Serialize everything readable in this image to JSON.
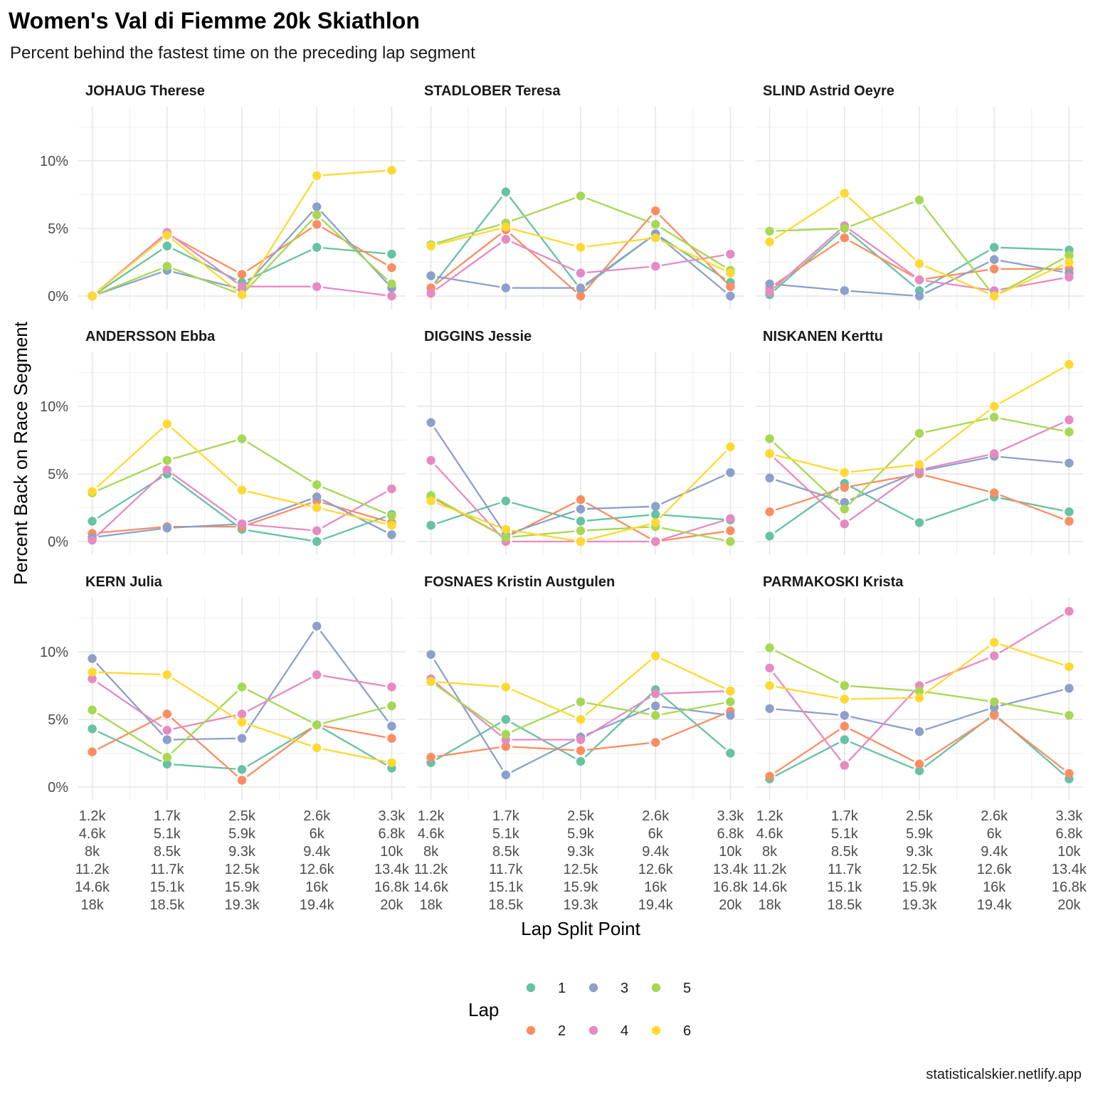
{
  "chart_data": {
    "type": "line",
    "title": "Women's Val di Fiemme 20k  Skiathlon",
    "subtitle": "Percent behind the fastest time on the preceding lap segment",
    "xlabel": "Lap Split Point",
    "ylabel": "Percent Back on Race Segment",
    "caption": "statisticalskier.netlify.app",
    "ylim": [
      -1,
      14
    ],
    "y_ticks": [
      0,
      5,
      10
    ],
    "y_tick_labels": [
      "0%",
      "5%",
      "10%"
    ],
    "x_categories": [
      [
        "1.2k",
        "4.6k",
        "8k",
        "11.2k",
        "14.6k",
        "18k"
      ],
      [
        "1.7k",
        "5.1k",
        "8.5k",
        "11.7k",
        "15.1k",
        "18.5k"
      ],
      [
        "2.5k",
        "5.9k",
        "9.3k",
        "12.5k",
        "15.9k",
        "19.3k"
      ],
      [
        "2.6k",
        "6k",
        "9.4k",
        "12.6k",
        "16k",
        "19.4k"
      ],
      [
        "3.3k",
        "6.8k",
        "10k",
        "13.4k",
        "16.8k",
        "20k"
      ]
    ],
    "grid": true,
    "legend": {
      "title": "Lap",
      "position": "bottom",
      "items": [
        {
          "label": "1",
          "color": "#66C2A5"
        },
        {
          "label": "2",
          "color": "#FC8D62"
        },
        {
          "label": "3",
          "color": "#8DA0CB"
        },
        {
          "label": "4",
          "color": "#E78AC3"
        },
        {
          "label": "5",
          "color": "#A6D854"
        },
        {
          "label": "6",
          "color": "#FFD92F"
        }
      ]
    },
    "facets": [
      {
        "name": "JOHAUG Therese",
        "series": [
          {
            "lap": "1",
            "values": [
              0,
              3.7,
              1.0,
              3.6,
              3.1
            ]
          },
          {
            "lap": "2",
            "values": [
              0,
              4.6,
              1.6,
              5.3,
              2.1
            ]
          },
          {
            "lap": "3",
            "values": [
              0,
              1.9,
              0.5,
              6.6,
              0.6
            ]
          },
          {
            "lap": "4",
            "values": [
              0,
              4.7,
              0.7,
              0.7,
              0
            ]
          },
          {
            "lap": "5",
            "values": [
              0,
              2.2,
              0.1,
              6.0,
              0.9
            ]
          },
          {
            "lap": "6",
            "values": [
              0,
              4.5,
              0.1,
              8.9,
              9.3
            ]
          }
        ]
      },
      {
        "name": "STADLOBER Teresa",
        "series": [
          {
            "lap": "1",
            "values": [
              0.6,
              7.7,
              0.5,
              4.6,
              1.0
            ]
          },
          {
            "lap": "2",
            "values": [
              0.6,
              4.9,
              0,
              6.3,
              0.7
            ]
          },
          {
            "lap": "3",
            "values": [
              1.5,
              0.6,
              0.6,
              4.6,
              0
            ]
          },
          {
            "lap": "4",
            "values": [
              0.2,
              4.2,
              1.7,
              2.2,
              3.1
            ]
          },
          {
            "lap": "5",
            "values": [
              3.8,
              5.4,
              7.4,
              5.3,
              1.9
            ]
          },
          {
            "lap": "6",
            "values": [
              3.7,
              5.1,
              3.6,
              4.3,
              1.7
            ]
          }
        ]
      },
      {
        "name": "SLIND Astrid Oeyre",
        "series": [
          {
            "lap": "1",
            "values": [
              0.1,
              5.0,
              0.4,
              3.6,
              3.4
            ]
          },
          {
            "lap": "2",
            "values": [
              0.6,
              4.3,
              1.2,
              2.0,
              2.0
            ]
          },
          {
            "lap": "3",
            "values": [
              0.9,
              0.4,
              0,
              2.7,
              1.7
            ]
          },
          {
            "lap": "4",
            "values": [
              0.3,
              5.2,
              1.2,
              0.4,
              1.4
            ]
          },
          {
            "lap": "5",
            "values": [
              4.8,
              5.0,
              7.1,
              0,
              3.0
            ]
          },
          {
            "lap": "6",
            "values": [
              4.0,
              7.6,
              2.4,
              0,
              2.5
            ]
          }
        ]
      },
      {
        "name": "ANDERSSON Ebba",
        "series": [
          {
            "lap": "1",
            "values": [
              1.5,
              5.0,
              0.9,
              0,
              2.0
            ]
          },
          {
            "lap": "2",
            "values": [
              0.6,
              1.1,
              1.1,
              3.0,
              1.4
            ]
          },
          {
            "lap": "3",
            "values": [
              0.3,
              1.0,
              1.3,
              3.3,
              0.5
            ]
          },
          {
            "lap": "4",
            "values": [
              0.1,
              5.3,
              1.3,
              0.8,
              3.9
            ]
          },
          {
            "lap": "5",
            "values": [
              3.6,
              6.0,
              7.6,
              4.2,
              1.9
            ]
          },
          {
            "lap": "6",
            "values": [
              3.7,
              8.7,
              3.8,
              2.5,
              1.2
            ]
          }
        ]
      },
      {
        "name": "DIGGINS Jessie",
        "series": [
          {
            "lap": "1",
            "values": [
              1.2,
              3.0,
              1.5,
              2.0,
              1.6
            ]
          },
          {
            "lap": "2",
            "values": [
              3.3,
              0.3,
              3.1,
              0,
              0.8
            ]
          },
          {
            "lap": "3",
            "values": [
              8.8,
              0.5,
              2.4,
              2.6,
              5.1
            ]
          },
          {
            "lap": "4",
            "values": [
              6.0,
              0,
              0,
              0,
              1.7
            ]
          },
          {
            "lap": "5",
            "values": [
              3.4,
              0.3,
              0.8,
              1.1,
              0
            ]
          },
          {
            "lap": "6",
            "values": [
              3.0,
              0.9,
              0,
              1.4,
              7.0
            ]
          }
        ]
      },
      {
        "name": "NISKANEN Kerttu",
        "series": [
          {
            "lap": "1",
            "values": [
              0.4,
              4.3,
              1.4,
              3.3,
              2.2
            ]
          },
          {
            "lap": "2",
            "values": [
              2.2,
              4.0,
              5.0,
              3.6,
              1.5
            ]
          },
          {
            "lap": "3",
            "values": [
              4.7,
              2.9,
              5.2,
              6.3,
              5.8
            ]
          },
          {
            "lap": "4",
            "values": [
              6.5,
              1.3,
              5.3,
              6.5,
              9.0
            ]
          },
          {
            "lap": "5",
            "values": [
              7.6,
              2.4,
              8.0,
              9.2,
              8.1
            ]
          },
          {
            "lap": "6",
            "values": [
              6.5,
              5.1,
              5.7,
              10.0,
              13.1
            ]
          }
        ]
      },
      {
        "name": "KERN Julia",
        "series": [
          {
            "lap": "1",
            "values": [
              4.3,
              1.7,
              1.3,
              4.6,
              1.4
            ]
          },
          {
            "lap": "2",
            "values": [
              2.6,
              5.4,
              0.5,
              4.6,
              3.6
            ]
          },
          {
            "lap": "3",
            "values": [
              9.5,
              3.5,
              3.6,
              11.9,
              4.5
            ]
          },
          {
            "lap": "4",
            "values": [
              8.0,
              4.2,
              5.4,
              8.3,
              7.4
            ]
          },
          {
            "lap": "5",
            "values": [
              5.7,
              2.2,
              7.4,
              4.6,
              6.0
            ]
          },
          {
            "lap": "6",
            "values": [
              8.5,
              8.3,
              4.8,
              2.9,
              1.8
            ]
          }
        ]
      },
      {
        "name": "FOSNAES Kristin Austgulen",
        "series": [
          {
            "lap": "1",
            "values": [
              1.8,
              5.0,
              1.9,
              7.2,
              2.5
            ]
          },
          {
            "lap": "2",
            "values": [
              2.2,
              3.0,
              2.7,
              3.3,
              5.6
            ]
          },
          {
            "lap": "3",
            "values": [
              9.8,
              0.9,
              3.7,
              6.0,
              5.3
            ]
          },
          {
            "lap": "4",
            "values": [
              8.0,
              3.5,
              3.5,
              6.9,
              7.1
            ]
          },
          {
            "lap": "5",
            "values": [
              7.8,
              3.9,
              6.3,
              5.3,
              6.3
            ]
          },
          {
            "lap": "6",
            "values": [
              7.8,
              7.4,
              5.0,
              9.7,
              7.1
            ]
          }
        ]
      },
      {
        "name": "PARMAKOSKI Krista",
        "series": [
          {
            "lap": "1",
            "values": [
              0.6,
              3.5,
              1.2,
              5.4,
              0.6
            ]
          },
          {
            "lap": "2",
            "values": [
              0.8,
              4.5,
              1.7,
              5.3,
              1.0
            ]
          },
          {
            "lap": "3",
            "values": [
              5.8,
              5.3,
              4.1,
              5.9,
              7.3
            ]
          },
          {
            "lap": "4",
            "values": [
              8.8,
              1.6,
              7.5,
              9.7,
              13.0
            ]
          },
          {
            "lap": "5",
            "values": [
              10.3,
              7.5,
              7.1,
              6.3,
              5.3
            ]
          },
          {
            "lap": "6",
            "values": [
              7.5,
              6.5,
              6.6,
              10.7,
              8.9
            ]
          }
        ]
      }
    ]
  }
}
